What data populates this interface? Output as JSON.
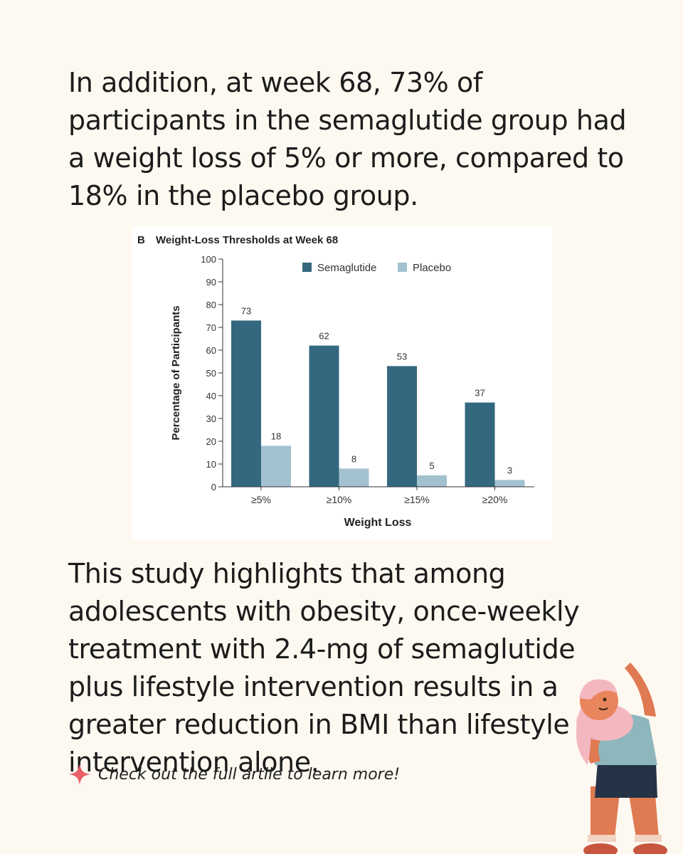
{
  "intro_text": "In addition, at week 68, 73% of participants in the semaglutide group had a weight loss of 5% or more, compared to 18% in the placebo group.",
  "conclusion_text": "This study highlights that among adolescents with obesity, once-weekly treatment with 2.4-mg of semaglutide plus lifestyle intervention results in a greater reduction in BMI than lifestyle intervention alone.",
  "cta": {
    "text": "Check out the full artile to learn more!",
    "icon": "sparkle-icon"
  },
  "colors": {
    "background": "#fdf9f0",
    "semaglutide": "#34687f",
    "placebo": "#a3c2d0",
    "sparkle": "#ea5f69"
  },
  "chart_data": {
    "type": "bar",
    "panel_label": "B",
    "title": "Weight-Loss Thresholds at Week 68",
    "xlabel": "Weight Loss",
    "ylabel": "Percentage of Participants",
    "ylim": [
      0,
      100
    ],
    "yticks": [
      0,
      10,
      20,
      30,
      40,
      50,
      60,
      70,
      80,
      90,
      100
    ],
    "categories": [
      "≥5%",
      "≥10%",
      "≥15%",
      "≥20%"
    ],
    "series": [
      {
        "name": "Semaglutide",
        "values": [
          73,
          62,
          53,
          37
        ]
      },
      {
        "name": "Placebo",
        "values": [
          18,
          8,
          5,
          3
        ]
      }
    ],
    "legend_position": "top"
  }
}
